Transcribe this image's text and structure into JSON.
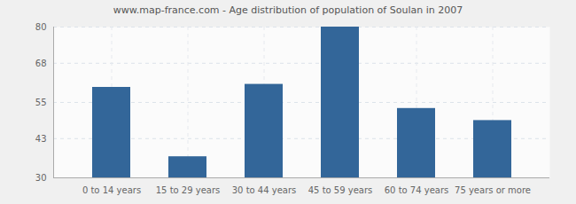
{
  "chart_data": {
    "type": "bar",
    "title": "www.map-france.com - Age distribution of population of Soulan in 2007",
    "categories": [
      "0 to 14 years",
      "15 to 29 years",
      "30 to 44 years",
      "45 to 59 years",
      "60 to 74 years",
      "75 years or more"
    ],
    "values": [
      60,
      37,
      61,
      80,
      53,
      49
    ],
    "color": "#336699",
    "ylim": [
      30,
      80
    ],
    "yticks": [
      30,
      43,
      55,
      68,
      80
    ],
    "grid": true
  }
}
